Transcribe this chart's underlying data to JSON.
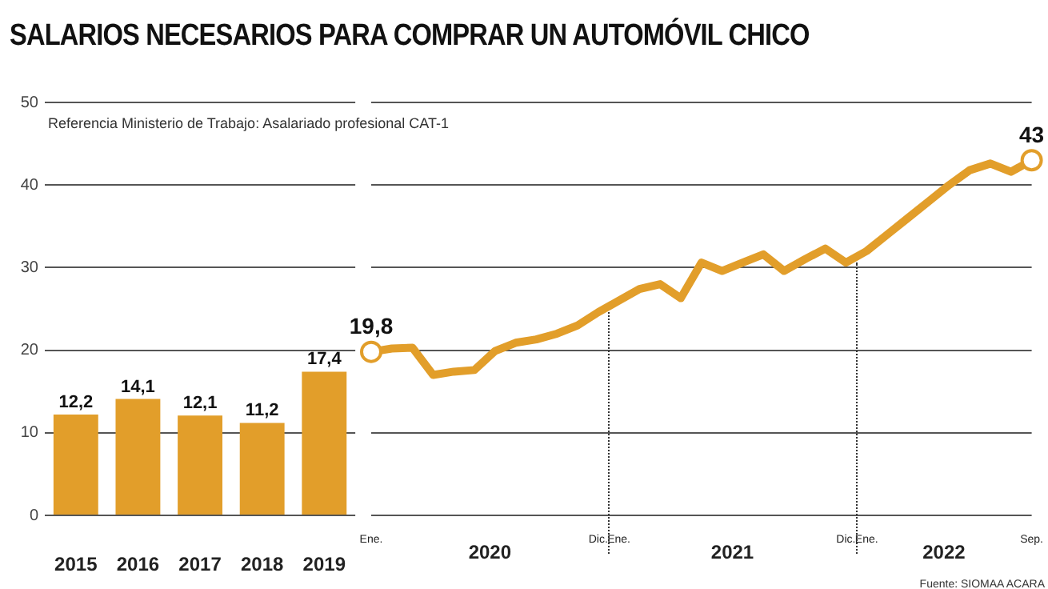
{
  "chart_data": [
    {
      "type": "bar",
      "title": "SALARIOS NECESARIOS PARA COMPRAR UN AUTOMÓVIL CHICO",
      "categories": [
        "2015",
        "2016",
        "2017",
        "2018",
        "2019"
      ],
      "values": [
        12.2,
        14.1,
        12.1,
        11.2,
        17.4
      ],
      "value_labels": [
        "12,2",
        "14,1",
        "12,1",
        "11,2",
        "17,4"
      ],
      "color": "#e29e2a",
      "ylim": [
        0,
        50
      ],
      "yticks": [
        0,
        10,
        20,
        30,
        40,
        50
      ],
      "grid": "y",
      "annotations": [
        "Referencia Ministerio de Trabajo: Asalariado profesional CAT-1"
      ]
    },
    {
      "type": "line",
      "categories": [
        "Ene.",
        null,
        null,
        null,
        null,
        null,
        null,
        null,
        null,
        null,
        null,
        "Dic.",
        "Ene.",
        null,
        null,
        null,
        null,
        null,
        null,
        null,
        null,
        null,
        null,
        "Dic.",
        "Ene.",
        null,
        null,
        null,
        null,
        null,
        null,
        null,
        "Sep."
      ],
      "series": [
        {
          "color": "#e29e2a",
          "values": [
            19.8,
            20.2,
            20.3,
            17.0,
            17.4,
            17.6,
            19.9,
            20.9,
            21.3,
            22.0,
            23.0,
            24.6,
            26.0,
            27.4,
            28.0,
            26.3,
            30.6,
            29.6,
            30.6,
            31.6,
            29.6,
            31.0,
            32.3,
            30.6,
            32.0,
            34.0,
            36.0,
            38.0,
            40.0,
            41.8,
            42.6,
            41.6,
            43
          ],
          "value_labels": [
            "19,8",
            null,
            null,
            null,
            null,
            null,
            null,
            null,
            null,
            null,
            null,
            null,
            null,
            null,
            null,
            null,
            null,
            null,
            null,
            null,
            null,
            null,
            null,
            null,
            null,
            null,
            null,
            null,
            null,
            null,
            null,
            null,
            "43"
          ]
        }
      ],
      "ylim": [
        0,
        50
      ],
      "yticks": [
        0,
        10,
        20,
        30,
        40,
        50
      ],
      "grid": "y",
      "tick_labels": "x",
      "annotations": [
        {
          "text": "2020"
        },
        {
          "text": "2021"
        },
        {
          "text": "2022"
        },
        "Fuente: SIOMAA ACARA"
      ]
    }
  ]
}
